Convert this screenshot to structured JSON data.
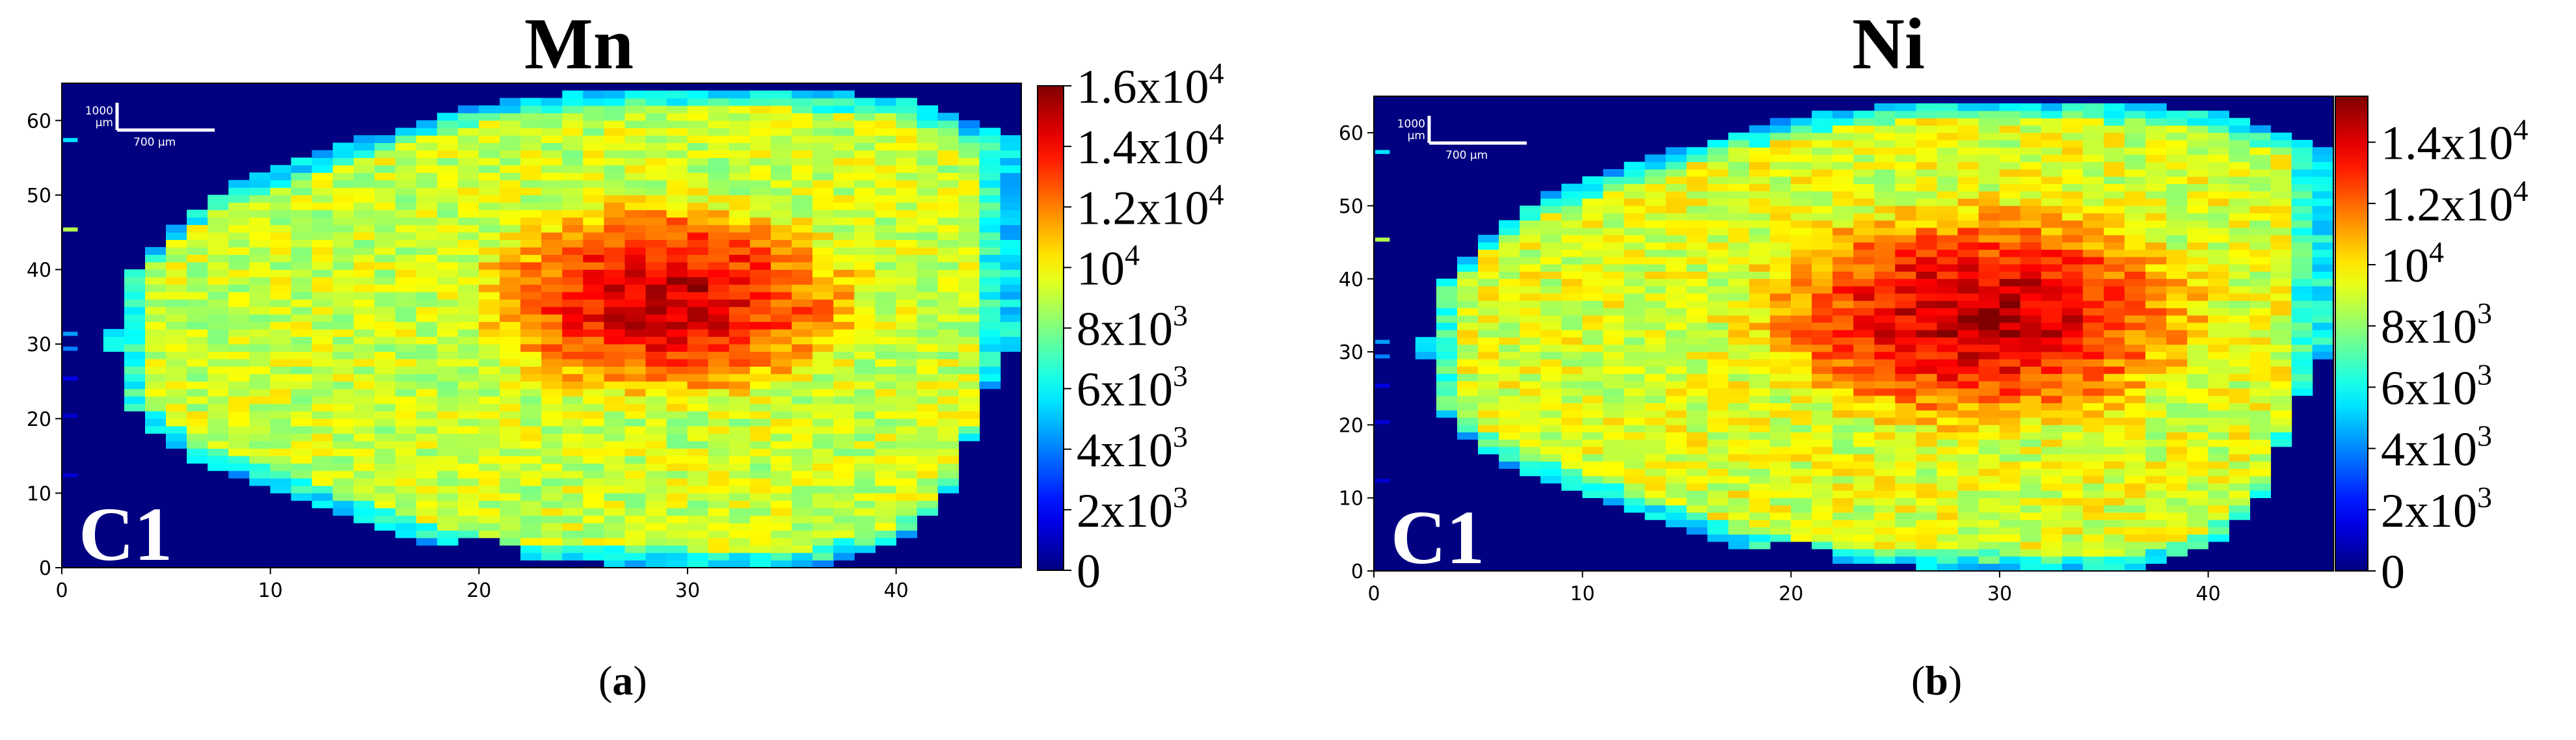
{
  "figure": {
    "panels": [
      {
        "id": "a",
        "caption_open": "(",
        "caption_letter": "a",
        "caption_close": ")"
      },
      {
        "id": "b",
        "caption_open": "(",
        "caption_letter": "b",
        "caption_close": ")"
      }
    ]
  },
  "chart_data": [
    {
      "type": "heatmap",
      "title": "Mn",
      "sample_label": "C1",
      "xlim": [
        0,
        46
      ],
      "ylim": [
        0,
        65
      ],
      "x_ticks": [
        "0",
        "10",
        "20",
        "30",
        "40"
      ],
      "y_ticks": [
        "0",
        "10",
        "20",
        "30",
        "40",
        "50",
        "60"
      ],
      "colorbar": {
        "range": [
          0,
          16000
        ],
        "tick_values": [
          0,
          2000,
          4000,
          6000,
          8000,
          10000,
          12000,
          14000,
          16000
        ],
        "tick_labels": [
          {
            "base": "0",
            "exp": ""
          },
          {
            "base": "2x10",
            "exp": "3"
          },
          {
            "base": "4x10",
            "exp": "3"
          },
          {
            "base": "6x10",
            "exp": "3"
          },
          {
            "base": "8x10",
            "exp": "3"
          },
          {
            "base": "10",
            "exp": "4"
          },
          {
            "base": "1.2x10",
            "exp": "4"
          },
          {
            "base": "1.4x10",
            "exp": "4"
          },
          {
            "base": "1.6x10",
            "exp": "4"
          }
        ]
      },
      "scalebar": {
        "vertical_label": "1000 µm",
        "horizontal_label": "700 µm"
      },
      "field": {
        "background_value": 0,
        "peak_value": 15000,
        "boundary_level": 7000,
        "core_center": [
          29,
          36
        ],
        "core_halfwidths": [
          10.5,
          15
        ]
      },
      "colors": {
        "low": "#0000ff",
        "mid": "#00ff00",
        "high": "#ff0000"
      }
    },
    {
      "type": "heatmap",
      "title": "Ni",
      "sample_label": "C1",
      "xlim": [
        0,
        46
      ],
      "ylim": [
        0,
        65
      ],
      "x_ticks": [
        "0",
        "10",
        "20",
        "30",
        "40"
      ],
      "y_ticks": [
        "0",
        "10",
        "20",
        "30",
        "40",
        "50",
        "60"
      ],
      "colorbar": {
        "range": [
          0,
          15500
        ],
        "tick_values": [
          0,
          2000,
          4000,
          6000,
          8000,
          10000,
          12000,
          14000
        ],
        "tick_labels": [
          {
            "base": "0",
            "exp": ""
          },
          {
            "base": "2x10",
            "exp": "3"
          },
          {
            "base": "4x10",
            "exp": "3"
          },
          {
            "base": "6x10",
            "exp": "3"
          },
          {
            "base": "8x10",
            "exp": "3"
          },
          {
            "base": "10",
            "exp": "4"
          },
          {
            "base": "1.2x10",
            "exp": "4"
          },
          {
            "base": "1.4x10",
            "exp": "4"
          }
        ]
      },
      "scalebar": {
        "vertical_label": "1000 µm",
        "horizontal_label": "700 µm"
      },
      "field": {
        "background_value": 0,
        "peak_value": 14800,
        "boundary_level": 7000,
        "core_center": [
          29,
          35
        ],
        "core_halfwidths": [
          12,
          17
        ]
      },
      "colors": {
        "low": "#0000ff",
        "mid": "#00ff00",
        "high": "#ff0000"
      }
    }
  ]
}
